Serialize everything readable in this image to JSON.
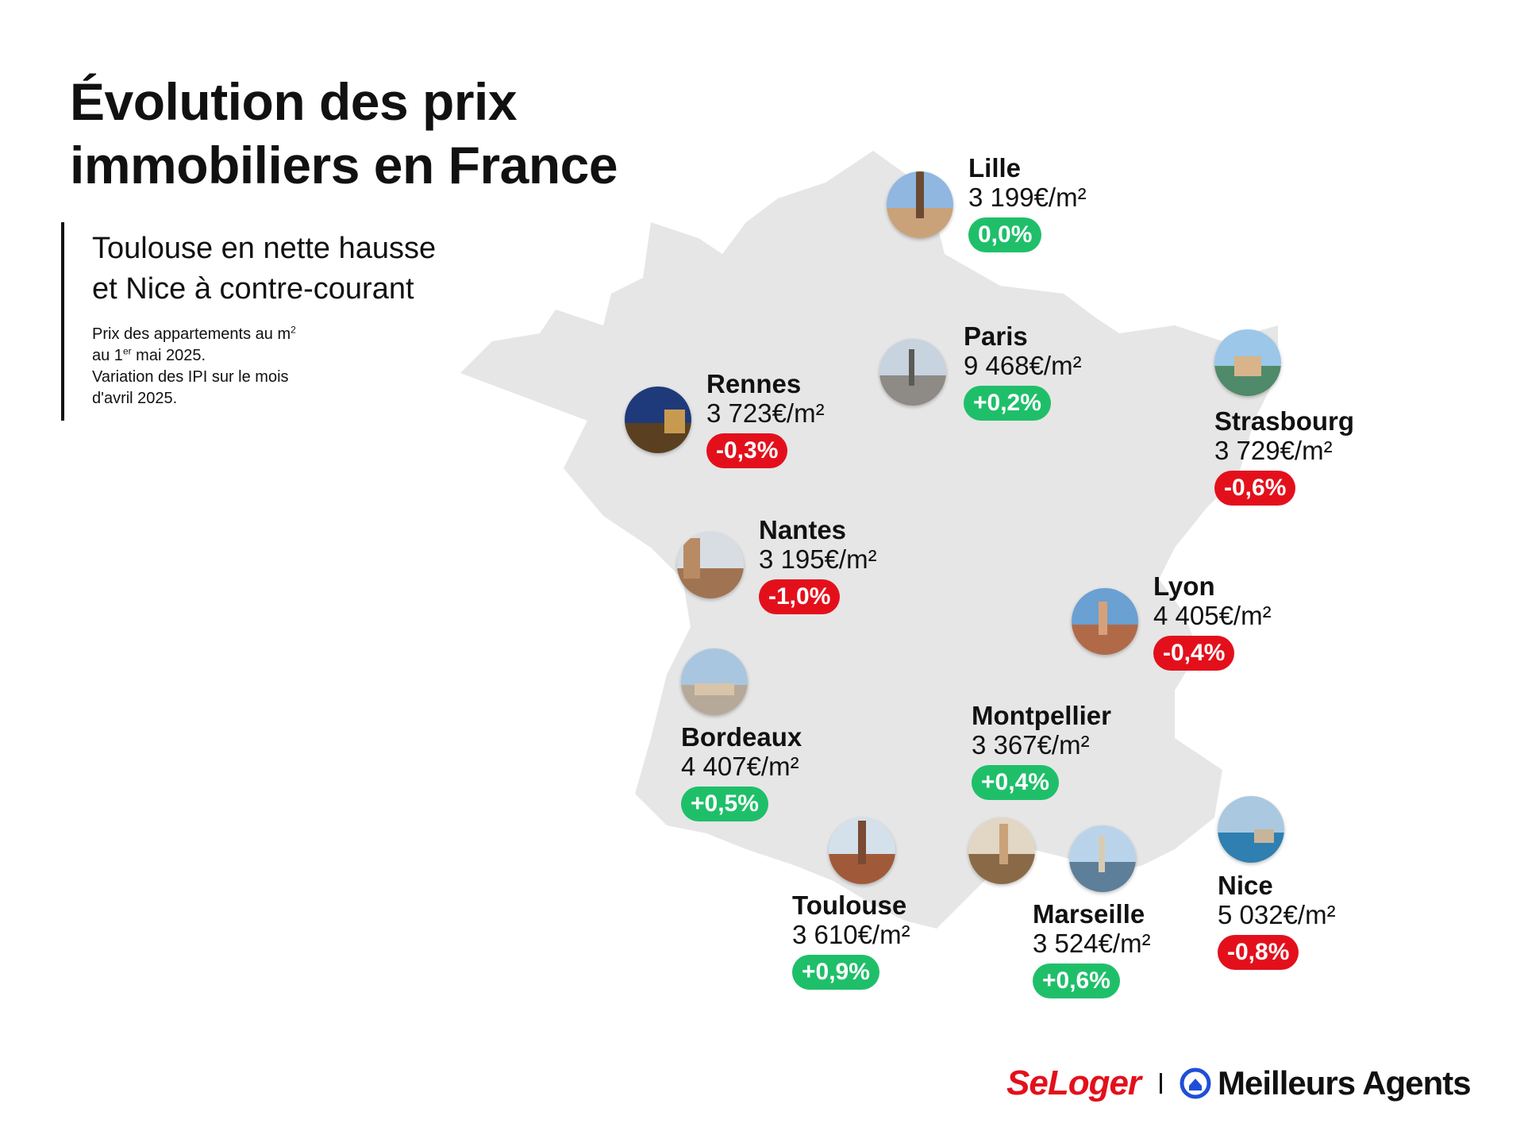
{
  "header": {
    "title_line1": "Évolution des prix",
    "title_line2": "immobiliers en France",
    "subtitle_line1": "Toulouse en nette hausse",
    "subtitle_line2": "et Nice à contre-courant",
    "note_line1_a": "Prix des appartements au m",
    "note_line1_sup": "2",
    "note_line2_a": "au 1",
    "note_line2_sup": "er",
    "note_line2_b": " mai 2025.",
    "note_line3": "Variation des IPI sur le mois",
    "note_line4": "d'avril 2025."
  },
  "cities": [
    {
      "name": "Lille",
      "price": "3 199€/m²",
      "change": "0,0%",
      "trend": "zero"
    },
    {
      "name": "Paris",
      "price": "9 468€/m²",
      "change": "+0,2%",
      "trend": "pos"
    },
    {
      "name": "Rennes",
      "price": "3 723€/m²",
      "change": "-0,3%",
      "trend": "neg"
    },
    {
      "name": "Strasbourg",
      "price": "3 729€/m²",
      "change": "-0,6%",
      "trend": "neg"
    },
    {
      "name": "Nantes",
      "price": "3 195€/m²",
      "change": "-1,0%",
      "trend": "neg"
    },
    {
      "name": "Lyon",
      "price": "4 405€/m²",
      "change": "-0,4%",
      "trend": "neg"
    },
    {
      "name": "Bordeaux",
      "price": "4 407€/m²",
      "change": "+0,5%",
      "trend": "pos"
    },
    {
      "name": "Montpellier",
      "price": "3 367€/m²",
      "change": "+0,4%",
      "trend": "pos"
    },
    {
      "name": "Toulouse",
      "price": "3 610€/m²",
      "change": "+0,9%",
      "trend": "pos"
    },
    {
      "name": "Marseille",
      "price": "3 524€/m²",
      "change": "+0,6%",
      "trend": "pos"
    },
    {
      "name": "Nice",
      "price": "5 032€/m²",
      "change": "-0,8%",
      "trend": "neg"
    }
  ],
  "colors": {
    "map_fill": "#e6e6e6",
    "positive": "#1fbf6a",
    "negative": "#e3101c",
    "seloger_red": "#e3101c",
    "meilleurs_agents_blue": "#1f4fd8"
  },
  "brand": {
    "seloger": "SeLoger",
    "meilleurs_agents": "Meilleurs Agents"
  }
}
